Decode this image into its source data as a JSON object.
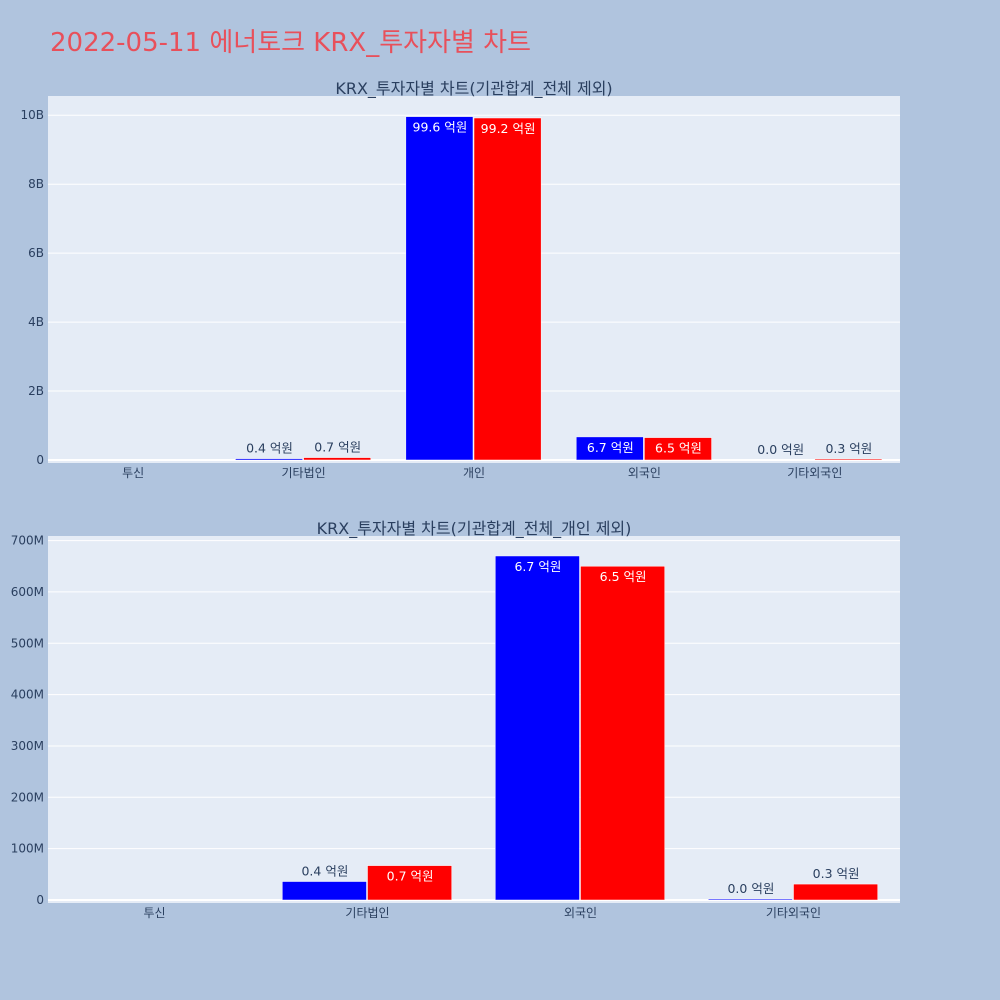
{
  "page_title": "2022-05-11 에너토크 KRX_투자자별 차트",
  "colors": {
    "series1": "#0000ff",
    "series2": "#ff0000",
    "plot_bg": "#e5ecf6",
    "page_bg": "#b0c4de",
    "title": "#e8505b"
  },
  "chart_data": [
    {
      "type": "bar",
      "title": "KRX_투자자별 차트(기관합계_전체 제외)",
      "categories": [
        "투신",
        "기타법인",
        "개인",
        "외국인",
        "기타외국인"
      ],
      "series": [
        {
          "values": [
            0,
            40000000,
            9960000000,
            670000000,
            0
          ],
          "labels": [
            "",
            "0.4 억원",
            "99.6 억원",
            "6.7 억원",
            "0.0 억원"
          ]
        },
        {
          "values": [
            0,
            70000000,
            9920000000,
            650000000,
            30000000
          ],
          "labels": [
            "",
            "0.7 억원",
            "99.2 억원",
            "6.5 억원",
            "0.3 억원"
          ]
        }
      ],
      "yticks": [
        "0",
        "2B",
        "4B",
        "6B",
        "8B",
        "10B"
      ],
      "ytick_values": [
        0,
        2000000000,
        4000000000,
        6000000000,
        8000000000,
        10000000000
      ],
      "ylim": [
        0,
        10500000000
      ],
      "grid": true
    },
    {
      "type": "bar",
      "title": "KRX_투자자별 차트(기관합계_전체_개인 제외)",
      "categories": [
        "투신",
        "기타법인",
        "외국인",
        "기타외국인"
      ],
      "series": [
        {
          "values": [
            0,
            36000000,
            670000000,
            2000000
          ],
          "labels": [
            "",
            "0.4 억원",
            "6.7 억원",
            "0.0 억원"
          ]
        },
        {
          "values": [
            0,
            67000000,
            650000000,
            31000000
          ],
          "labels": [
            "",
            "0.7 억원",
            "6.5 억원",
            "0.3 억원"
          ]
        }
      ],
      "yticks": [
        "0",
        "100M",
        "200M",
        "300M",
        "400M",
        "500M",
        "600M",
        "700M"
      ],
      "ytick_values": [
        0,
        100000000,
        200000000,
        300000000,
        400000000,
        500000000,
        600000000,
        700000000
      ],
      "ylim": [
        0,
        705000000
      ],
      "grid": true
    }
  ]
}
